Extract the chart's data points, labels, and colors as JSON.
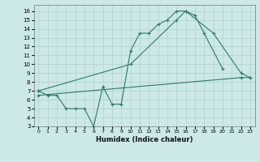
{
  "xlabel": "Humidex (Indice chaleur)",
  "bg_color": "#cce8e8",
  "line_color": "#2d7a6b",
  "grid_color": "#b0d0d0",
  "xlim": [
    -0.5,
    23.5
  ],
  "ylim": [
    3,
    16.7
  ],
  "yticks": [
    3,
    4,
    5,
    6,
    7,
    8,
    9,
    10,
    11,
    12,
    13,
    14,
    15,
    16
  ],
  "xticks": [
    0,
    1,
    2,
    3,
    4,
    5,
    6,
    7,
    8,
    9,
    10,
    11,
    12,
    13,
    14,
    15,
    16,
    17,
    18,
    19,
    20,
    21,
    22,
    23
  ],
  "series": [
    {
      "x": [
        0,
        1,
        2,
        3,
        4,
        5,
        6,
        7,
        8,
        9,
        10,
        11,
        12,
        13,
        14,
        15,
        16,
        17,
        18,
        20
      ],
      "y": [
        7.0,
        6.5,
        6.5,
        5.0,
        5.0,
        5.0,
        3.0,
        7.5,
        5.5,
        5.5,
        11.5,
        13.5,
        13.5,
        14.5,
        15.0,
        16.0,
        16.0,
        15.5,
        13.5,
        9.5
      ]
    },
    {
      "x": [
        0,
        10,
        15,
        16,
        19,
        22,
        23
      ],
      "y": [
        7.0,
        10.0,
        15.0,
        16.0,
        13.5,
        9.0,
        8.5
      ]
    },
    {
      "x": [
        0,
        22,
        23
      ],
      "y": [
        6.5,
        8.5,
        8.5
      ]
    }
  ]
}
